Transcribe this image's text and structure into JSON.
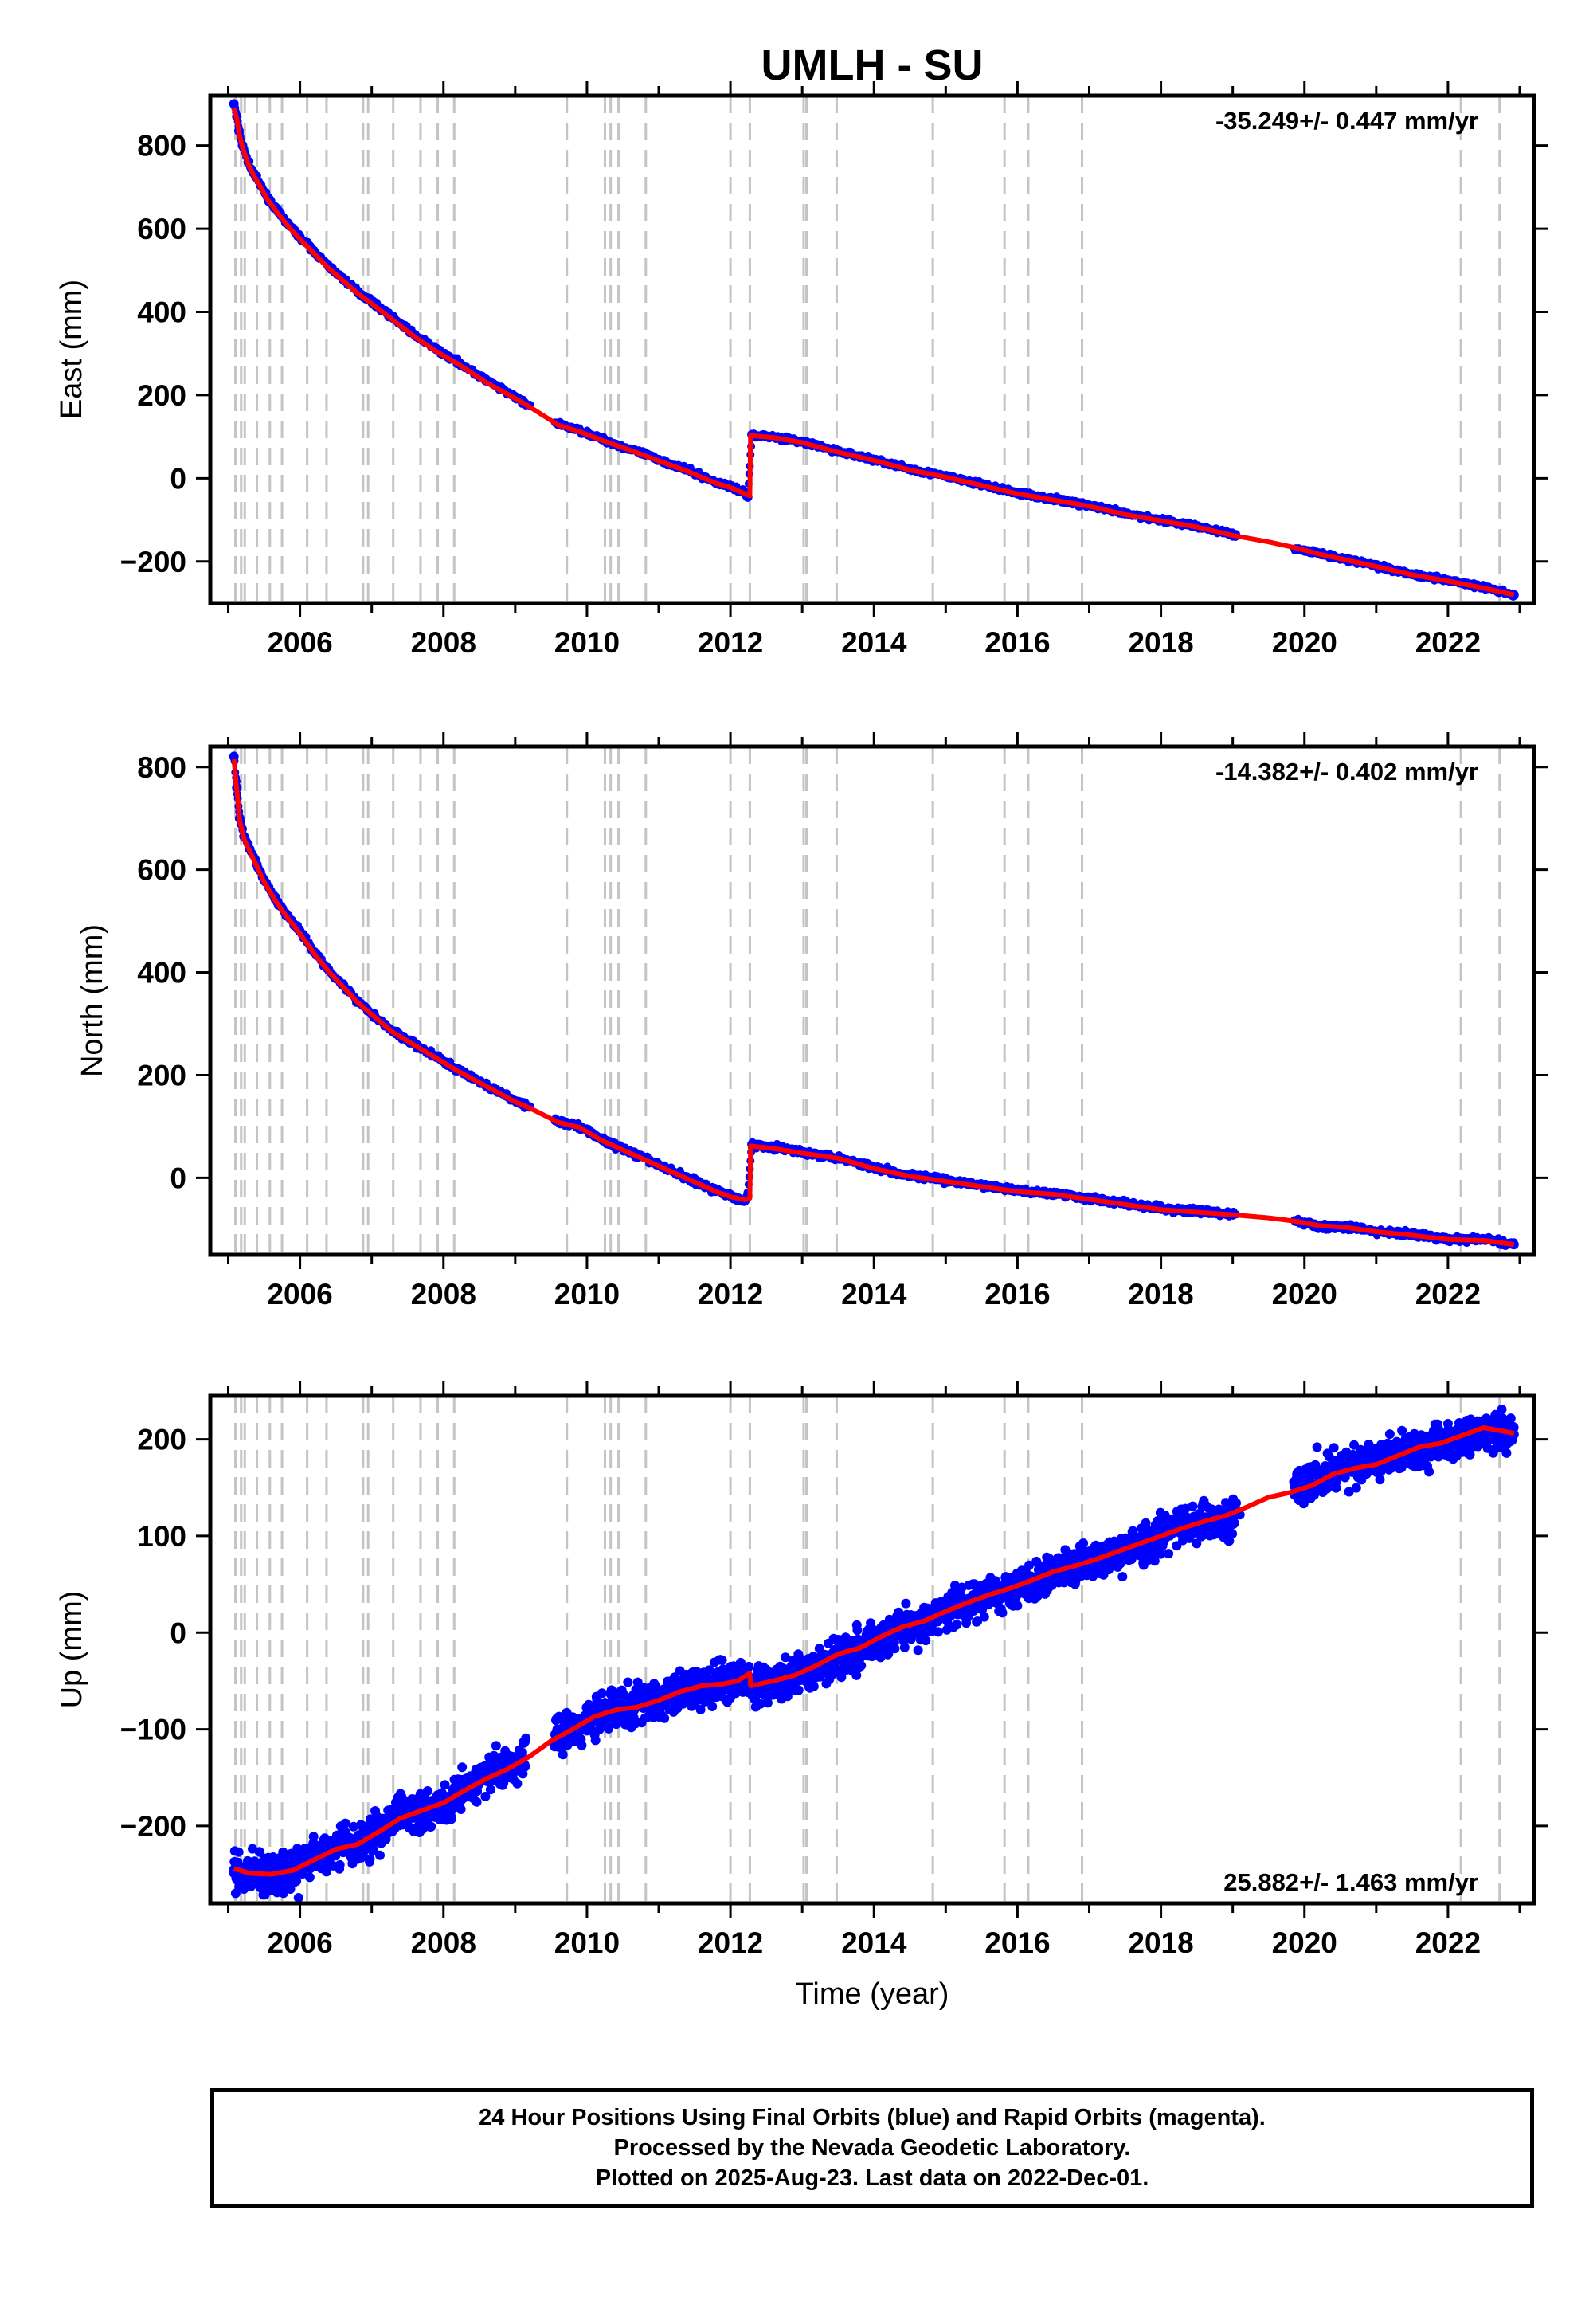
{
  "chart_data": {
    "type": "scatter",
    "title": "UMLH - SU",
    "xlabel": "Time (year)",
    "x_ticks": [
      2006,
      2008,
      2010,
      2012,
      2014,
      2016,
      2018,
      2020,
      2022
    ],
    "xlim": [
      2004.75,
      2023.2
    ],
    "grid": false,
    "equipment_change_epochs": [
      2005.1,
      2005.18,
      2005.23,
      2005.4,
      2005.58,
      2005.75,
      2006.1,
      2006.37,
      2006.88,
      2006.95,
      2007.3,
      2007.68,
      2007.92,
      2008.15,
      2009.72,
      2010.25,
      2010.33,
      2010.44,
      2010.82,
      2012.0,
      2012.27,
      2013.02,
      2013.06,
      2013.48,
      2014.82,
      2015.82,
      2016.15,
      2016.9,
      2022.18,
      2022.72
    ],
    "panels": [
      {
        "component": "East",
        "ylabel": "East (mm)",
        "ylim": [
          -300,
          920
        ],
        "y_ticks": [
          -200,
          0,
          200,
          400,
          600,
          800
        ],
        "velocity_label": "-35.249+/- 0.447 mm/yr",
        "velocity_position": "top-right",
        "series": [
          {
            "name": "Final Orbits",
            "color": "#0000ff",
            "x": [
              2005.08,
              2005.12,
              2005.15,
              2005.2,
              2005.28,
              2005.35,
              2005.45,
              2005.55,
              2005.7,
              2005.85,
              2006.0,
              2006.2,
              2006.4,
              2006.6,
              2006.8,
              2007.0,
              2007.3,
              2007.6,
              2007.9,
              2008.2,
              2008.6,
              2009.0,
              2009.2,
              2009.6,
              2009.9,
              2010.2,
              2010.6,
              2011.0,
              2011.4,
              2011.8,
              2012.0,
              2012.2,
              2012.24,
              2012.3,
              2012.6,
              2013.0,
              2013.5,
              2014.0,
              2014.5,
              2015.0,
              2015.5,
              2016.0,
              2016.5,
              2017.0,
              2017.5,
              2018.0,
              2018.5,
              2019.0,
              2019.9,
              2020.2,
              2020.6,
              2021.0,
              2021.5,
              2022.0,
              2022.5,
              2022.92
            ],
            "y": [
              900,
              870,
              835,
              800,
              760,
              735,
              705,
              675,
              640,
              608,
              580,
              545,
              510,
              480,
              450,
              425,
              385,
              345,
              310,
              280,
              235,
              195,
              175,
              130,
              115,
              95,
              70,
              45,
              20,
              -10,
              -20,
              -35,
              -45,
              105,
              100,
              88,
              65,
              45,
              22,
              5,
              -15,
              -35,
              -50,
              -65,
              -85,
              -100,
              -115,
              -135,
              -170,
              -180,
              -195,
              -210,
              -230,
              -245,
              -262,
              -280
            ]
          },
          {
            "name": "Model",
            "color": "#ff0000",
            "x": [
              2005.08,
              2005.12,
              2005.15,
              2005.2,
              2005.28,
              2005.35,
              2005.45,
              2005.55,
              2005.7,
              2005.85,
              2006.0,
              2006.2,
              2006.4,
              2006.6,
              2006.8,
              2007.0,
              2007.3,
              2007.6,
              2007.9,
              2008.2,
              2008.6,
              2009.0,
              2009.2,
              2009.6,
              2009.9,
              2010.2,
              2010.6,
              2011.0,
              2011.4,
              2011.8,
              2012.0,
              2012.2,
              2012.27,
              2012.28,
              2012.6,
              2013.0,
              2013.5,
              2014.0,
              2014.5,
              2015.0,
              2015.5,
              2016.0,
              2016.5,
              2017.0,
              2017.5,
              2018.0,
              2018.5,
              2019.0,
              2019.5,
              2019.9,
              2020.2,
              2020.6,
              2021.0,
              2021.5,
              2022.0,
              2022.5,
              2022.92
            ],
            "y": [
              890,
              865,
              830,
              795,
              755,
              730,
              700,
              670,
              635,
              603,
              575,
              540,
              505,
              475,
              445,
              420,
              380,
              340,
              305,
              275,
              230,
              192,
              172,
              128,
              112,
              92,
              68,
              42,
              17,
              -12,
              -22,
              -37,
              -42,
              103,
              98,
              86,
              63,
              43,
              20,
              3,
              -17,
              -37,
              -52,
              -67,
              -87,
              -102,
              -117,
              -137,
              -153,
              -168,
              -182,
              -197,
              -212,
              -232,
              -247,
              -264,
              -280
            ]
          }
        ]
      },
      {
        "component": "North",
        "ylabel": "North (mm)",
        "ylim": [
          -150,
          840
        ],
        "y_ticks": [
          0,
          200,
          400,
          600,
          800
        ],
        "velocity_label": "-14.382+/- 0.402 mm/yr",
        "velocity_position": "top-right",
        "series": [
          {
            "name": "Final Orbits",
            "color": "#0000ff",
            "x": [
              2005.08,
              2005.12,
              2005.16,
              2005.22,
              2005.3,
              2005.4,
              2005.5,
              2005.65,
              2005.8,
              2006.0,
              2006.2,
              2006.4,
              2006.6,
              2006.8,
              2007.0,
              2007.3,
              2007.6,
              2007.9,
              2008.2,
              2008.6,
              2009.0,
              2009.2,
              2009.6,
              2009.9,
              2010.2,
              2010.6,
              2011.0,
              2011.4,
              2011.8,
              2012.0,
              2012.2,
              2012.24,
              2012.3,
              2012.6,
              2013.0,
              2013.5,
              2014.0,
              2014.5,
              2015.0,
              2015.5,
              2016.0,
              2016.5,
              2017.0,
              2017.5,
              2018.0,
              2018.5,
              2019.0,
              2019.9,
              2020.2,
              2020.6,
              2021.0,
              2021.5,
              2022.0,
              2022.5,
              2022.92
            ],
            "y": [
              820,
              760,
              700,
              665,
              640,
              610,
              580,
              545,
              515,
              480,
              440,
              405,
              375,
              345,
              320,
              285,
              260,
              235,
              210,
              180,
              150,
              138,
              110,
              100,
              75,
              50,
              25,
              0,
              -25,
              -35,
              -45,
              -35,
              65,
              60,
              50,
              40,
              20,
              5,
              -5,
              -15,
              -25,
              -30,
              -40,
              -50,
              -60,
              -65,
              -70,
              -85,
              -95,
              -95,
              -105,
              -110,
              -120,
              -120,
              -130
            ]
          },
          {
            "name": "Model",
            "color": "#ff0000",
            "x": [
              2005.08,
              2005.12,
              2005.16,
              2005.22,
              2005.3,
              2005.4,
              2005.5,
              2005.65,
              2005.8,
              2006.0,
              2006.2,
              2006.4,
              2006.6,
              2006.8,
              2007.0,
              2007.3,
              2007.6,
              2007.9,
              2008.2,
              2008.6,
              2009.0,
              2009.2,
              2009.6,
              2009.9,
              2010.2,
              2010.6,
              2011.0,
              2011.4,
              2011.8,
              2012.0,
              2012.2,
              2012.27,
              2012.28,
              2012.6,
              2013.0,
              2013.5,
              2014.0,
              2014.5,
              2015.0,
              2015.5,
              2016.0,
              2016.5,
              2017.0,
              2017.5,
              2018.0,
              2018.5,
              2019.0,
              2019.5,
              2019.9,
              2020.2,
              2020.6,
              2021.0,
              2021.5,
              2022.0,
              2022.5,
              2022.92
            ],
            "y": [
              815,
              755,
              695,
              660,
              636,
              606,
              576,
              541,
              511,
              476,
              436,
              402,
              372,
              342,
              318,
              283,
              258,
              233,
              208,
              178,
              148,
              136,
              108,
              98,
              73,
              48,
              23,
              -2,
              -27,
              -37,
              -43,
              -40,
              62,
              57,
              48,
              38,
              18,
              3,
              -7,
              -17,
              -27,
              -32,
              -42,
              -52,
              -62,
              -67,
              -72,
              -78,
              -85,
              -93,
              -97,
              -105,
              -112,
              -120,
              -122,
              -130
            ]
          }
        ]
      },
      {
        "component": "Up",
        "ylabel": "Up (mm)",
        "ylim": [
          -280,
          245
        ],
        "y_ticks": [
          -200,
          -100,
          0,
          100,
          200
        ],
        "velocity_label": "25.882+/- 1.463 mm/yr",
        "velocity_position": "bottom-right",
        "series": [
          {
            "name": "Final Orbits",
            "color": "#0000ff",
            "scatter_sd": 10,
            "x": [
              2005.08,
              2005.3,
              2005.6,
              2005.9,
              2006.2,
              2006.5,
              2006.8,
              2007.1,
              2007.4,
              2007.7,
              2008.0,
              2008.3,
              2008.6,
              2008.9,
              2009.1,
              2009.6,
              2009.9,
              2010.2,
              2010.5,
              2010.8,
              2011.1,
              2011.4,
              2011.7,
              2012.0,
              2012.2,
              2012.3,
              2012.6,
              2012.9,
              2013.2,
              2013.5,
              2013.8,
              2014.1,
              2014.4,
              2014.7,
              2015.0,
              2015.3,
              2015.6,
              2015.9,
              2016.2,
              2016.5,
              2016.8,
              2017.1,
              2017.4,
              2017.7,
              2018.0,
              2018.3,
              2018.6,
              2018.9,
              2019.1,
              2019.9,
              2020.2,
              2020.5,
              2020.8,
              2021.1,
              2021.4,
              2021.7,
              2022.0,
              2022.3,
              2022.6,
              2022.92
            ],
            "y": [
              -245,
              -250,
              -252,
              -250,
              -232,
              -222,
              -220,
              -205,
              -188,
              -182,
              -176,
              -162,
              -148,
              -138,
              -128,
              -102,
              -98,
              -82,
              -78,
              -74,
              -68,
              -58,
              -55,
              -50,
              -48,
              -55,
              -52,
              -47,
              -35,
              -22,
              -18,
              -5,
              5,
              10,
              20,
              30,
              38,
              45,
              52,
              62,
              70,
              75,
              82,
              90,
              100,
              110,
              115,
              118,
              122,
              150,
              162,
              170,
              175,
              180,
              188,
              192,
              198,
              205,
              210,
              205
            ]
          },
          {
            "name": "Model",
            "color": "#ff0000",
            "x": [
              2005.08,
              2005.3,
              2005.6,
              2005.9,
              2006.2,
              2006.5,
              2006.8,
              2007.1,
              2007.4,
              2007.7,
              2008.0,
              2008.3,
              2008.6,
              2008.9,
              2009.2,
              2009.5,
              2009.8,
              2010.1,
              2010.4,
              2010.7,
              2011.0,
              2011.3,
              2011.6,
              2011.9,
              2012.1,
              2012.27,
              2012.28,
              2012.6,
              2012.9,
              2013.2,
              2013.5,
              2013.8,
              2014.1,
              2014.4,
              2014.7,
              2015.0,
              2015.3,
              2015.6,
              2015.9,
              2016.2,
              2016.5,
              2016.8,
              2017.1,
              2017.4,
              2017.7,
              2018.0,
              2018.3,
              2018.6,
              2018.9,
              2019.2,
              2019.5,
              2019.8,
              2020.1,
              2020.4,
              2020.7,
              2021.0,
              2021.3,
              2021.6,
              2021.9,
              2022.2,
              2022.5,
              2022.8,
              2022.92
            ],
            "y": [
              -244,
              -249,
              -250,
              -246,
              -235,
              -224,
              -219,
              -206,
              -192,
              -184,
              -176,
              -163,
              -151,
              -141,
              -128,
              -112,
              -100,
              -87,
              -80,
              -77,
              -70,
              -61,
              -55,
              -53,
              -50,
              -42,
              -55,
              -50,
              -44,
              -34,
              -22,
              -16,
              -4,
              6,
              12,
              22,
              31,
              39,
              46,
              54,
              63,
              69,
              76,
              84,
              92,
              100,
              108,
              115,
              121,
              130,
              140,
              145,
              152,
              164,
              170,
              174,
              183,
              192,
              196,
              204,
              212,
              208,
              206
            ]
          }
        ]
      }
    ]
  },
  "footer": {
    "line1": "24 Hour Positions Using Final Orbits (blue) and Rapid Orbits (magenta).",
    "line2": "Processed by the Nevada Geodetic Laboratory.",
    "line3": "Plotted on 2025-Aug-23. Last data on 2022-Dec-01."
  }
}
